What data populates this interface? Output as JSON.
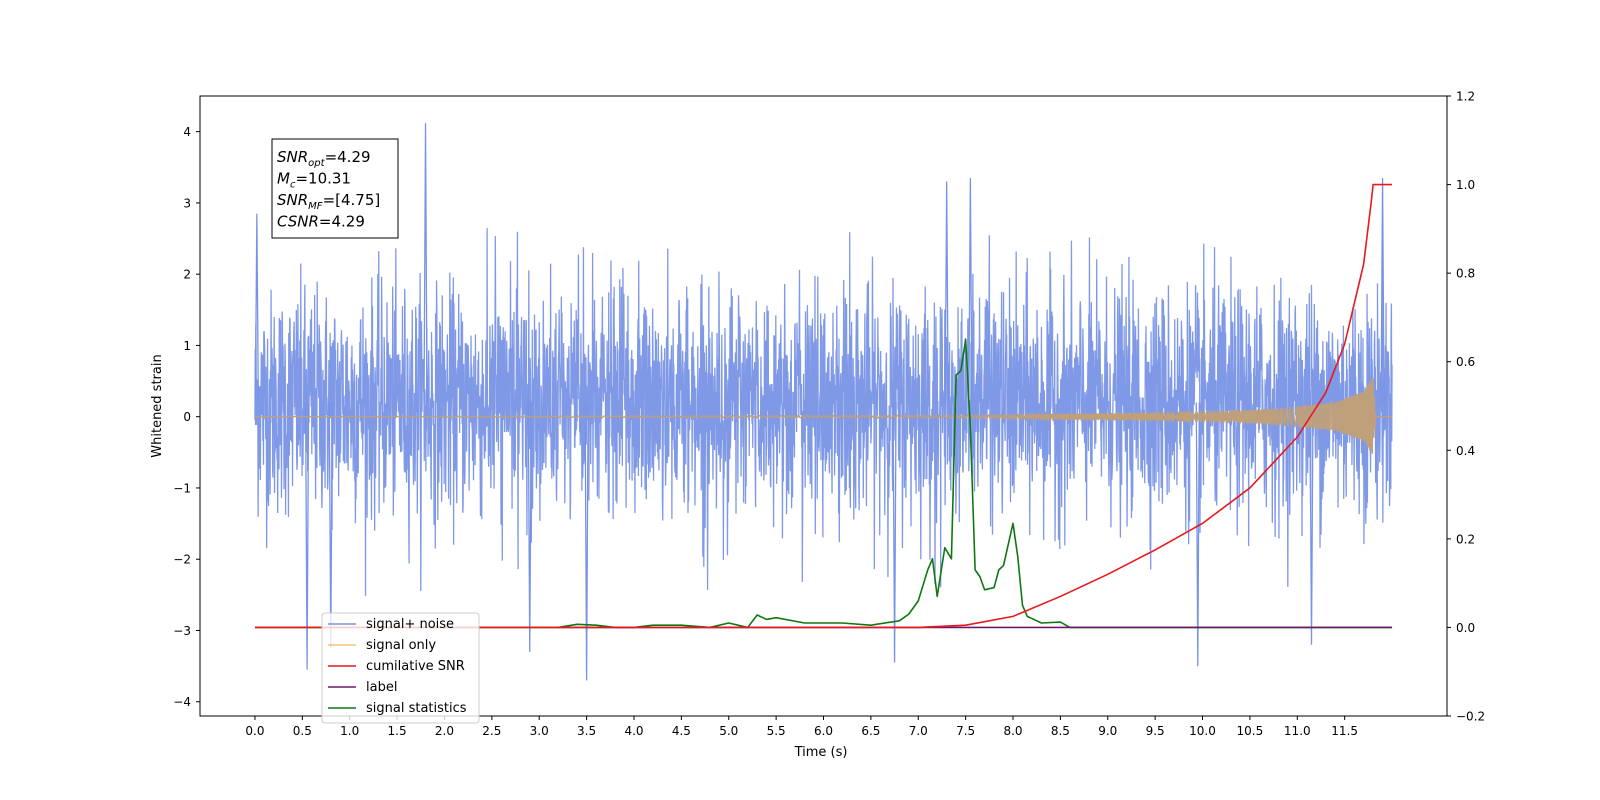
{
  "chart_data": {
    "type": "line",
    "xlabel": "Time (s)",
    "ylabel": "Whitened strain",
    "xlim": [
      -0.58,
      12.58
    ],
    "ylim": [
      -4.2,
      4.5
    ],
    "y2lim": [
      -0.2,
      1.2
    ],
    "x_ticks": [
      0.0,
      0.5,
      1.0,
      1.5,
      2.0,
      2.5,
      3.0,
      3.5,
      4.0,
      4.5,
      5.0,
      5.5,
      6.0,
      6.5,
      7.0,
      7.5,
      8.0,
      8.5,
      9.0,
      9.5,
      10.0,
      10.5,
      11.0,
      11.5
    ],
    "x_tick_labels": [
      "0.0",
      "0.5",
      "1.0",
      "1.5",
      "2.0",
      "2.5",
      "3.0",
      "3.5",
      "4.0",
      "4.5",
      "5.0",
      "5.5",
      "6.0",
      "6.5",
      "7.0",
      "7.5",
      "8.0",
      "8.5",
      "9.0",
      "9.5",
      "10.0",
      "10.5",
      "11.0",
      "11.5"
    ],
    "y_ticks": [
      -4,
      -3,
      -2,
      -1,
      0,
      1,
      2,
      3,
      4
    ],
    "y_tick_labels": [
      "−4",
      "−3",
      "−2",
      "−1",
      "0",
      "1",
      "2",
      "3",
      "4"
    ],
    "y2_ticks": [
      -0.2,
      0.0,
      0.2,
      0.4,
      0.6,
      0.8,
      1.0,
      1.2
    ],
    "y2_tick_labels": [
      "−0.2",
      "0.0",
      "0.2",
      "0.4",
      "0.6",
      "0.8",
      "1.0",
      "1.2"
    ],
    "legend": {
      "placement": "lower-left",
      "entries": [
        {
          "label": "signal+ noise",
          "color": "#7893e6"
        },
        {
          "label": "signal only",
          "color": "#f5c27c"
        },
        {
          "label": "cumilative SNR",
          "color": "#e6191c"
        },
        {
          "label": "label",
          "color": "#6b1a6b"
        },
        {
          "label": "signal statistics",
          "color": "#117711"
        }
      ]
    },
    "annotation": {
      "lines": [
        {
          "name": "SNR",
          "sub": "opt",
          "value": "=4.29"
        },
        {
          "name": "M",
          "sub": "c",
          "value": "=10.31"
        },
        {
          "name": "SNR",
          "sub": "MF",
          "value": "=[4.75]"
        },
        {
          "name": "CSNR",
          "sub": "",
          "value": "=4.29"
        }
      ]
    },
    "series": [
      {
        "name": "signal+ noise",
        "axis": "left",
        "color": "#7893e6",
        "style": "noise band",
        "x_range": [
          0.0,
          12.0
        ],
        "typical_range": [
          -1.8,
          2.4
        ],
        "peaks": [
          {
            "x": 0.02,
            "y": 2.85
          },
          {
            "x": 0.55,
            "y": -3.55
          },
          {
            "x": 0.8,
            "y": -3.25
          },
          {
            "x": 1.8,
            "y": 4.12
          },
          {
            "x": 2.9,
            "y": -3.3
          },
          {
            "x": 3.5,
            "y": -3.7
          },
          {
            "x": 7.3,
            "y": 3.3
          },
          {
            "x": 7.55,
            "y": 3.35
          },
          {
            "x": 6.75,
            "y": -3.45
          },
          {
            "x": 9.95,
            "y": -3.5
          },
          {
            "x": 11.15,
            "y": -3.2
          },
          {
            "x": 11.9,
            "y": 3.35
          }
        ]
      },
      {
        "name": "signal only",
        "axis": "left",
        "color": "#f5c27c",
        "style": "chirp",
        "x_range": [
          0.0,
          12.0
        ],
        "amplitude": [
          {
            "x": 0.0,
            "y": 0.0
          },
          {
            "x": 7.5,
            "y": 0.02
          },
          {
            "x": 9.0,
            "y": 0.05
          },
          {
            "x": 10.0,
            "y": 0.08
          },
          {
            "x": 10.5,
            "y": 0.1
          },
          {
            "x": 11.0,
            "y": 0.14
          },
          {
            "x": 11.4,
            "y": 0.2
          },
          {
            "x": 11.7,
            "y": 0.35
          },
          {
            "x": 11.8,
            "y": 0.55
          },
          {
            "x": 11.83,
            "y": 0.0
          },
          {
            "x": 12.0,
            "y": 0.0
          }
        ]
      },
      {
        "name": "cumilative SNR",
        "axis": "right",
        "color": "#e6191c",
        "x": [
          0.0,
          7.0,
          7.5,
          8.0,
          8.5,
          9.0,
          9.5,
          10.0,
          10.5,
          11.0,
          11.3,
          11.5,
          11.7,
          11.78,
          11.8,
          12.0
        ],
        "y": [
          0.0,
          0.0,
          0.005,
          0.025,
          0.07,
          0.12,
          0.175,
          0.235,
          0.315,
          0.43,
          0.53,
          0.64,
          0.82,
          0.96,
          1.0,
          1.0
        ]
      },
      {
        "name": "label",
        "axis": "right",
        "color": "#6b1a6b",
        "x": [
          3.2,
          12.0
        ],
        "y": [
          0.0,
          0.0
        ]
      },
      {
        "name": "signal statistics",
        "axis": "right",
        "color": "#117711",
        "x": [
          0.0,
          3.2,
          3.4,
          3.6,
          3.8,
          4.0,
          4.2,
          4.5,
          4.8,
          5.0,
          5.2,
          5.3,
          5.4,
          5.5,
          5.8,
          6.0,
          6.2,
          6.5,
          6.8,
          6.9,
          7.0,
          7.1,
          7.15,
          7.2,
          7.28,
          7.35,
          7.4,
          7.45,
          7.5,
          7.55,
          7.6,
          7.65,
          7.7,
          7.8,
          7.85,
          7.9,
          8.0,
          8.05,
          8.1,
          8.15,
          8.2,
          8.3,
          8.5,
          8.6,
          8.7,
          9.0,
          12.0
        ],
        "y": [
          0.0,
          0.0,
          0.007,
          0.005,
          0.0,
          0.0,
          0.005,
          0.005,
          0.0,
          0.01,
          0.0,
          0.028,
          0.018,
          0.022,
          0.01,
          0.01,
          0.01,
          0.005,
          0.015,
          0.03,
          0.06,
          0.13,
          0.155,
          0.07,
          0.18,
          0.155,
          0.57,
          0.58,
          0.65,
          0.45,
          0.13,
          0.115,
          0.085,
          0.09,
          0.13,
          0.14,
          0.235,
          0.16,
          0.05,
          0.025,
          0.02,
          0.01,
          0.012,
          0.0,
          0.0,
          0.0,
          0.0
        ]
      }
    ]
  }
}
